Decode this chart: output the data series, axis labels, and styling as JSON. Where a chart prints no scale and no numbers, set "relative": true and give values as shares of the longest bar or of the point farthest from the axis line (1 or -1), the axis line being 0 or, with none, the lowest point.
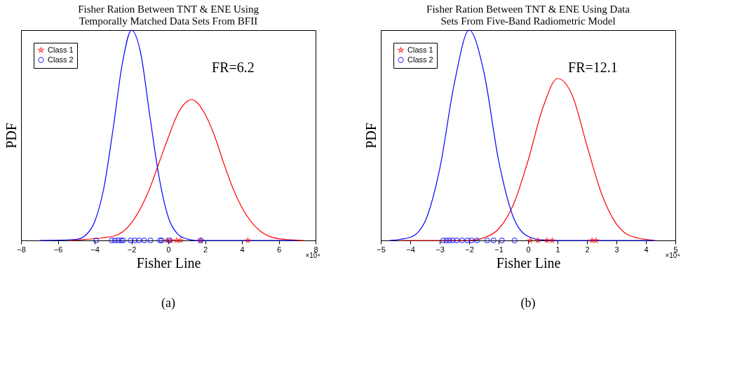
{
  "chart_data": [
    {
      "type": "line",
      "relative": true,
      "title": "Fisher Ration Between TNT & ENE Using\nTemporally Matched Data Sets From BFII",
      "xlabel": "Fisher Line",
      "ylabel": "PDF",
      "xlim": [
        -8,
        8
      ],
      "xticks": [
        -8,
        -6,
        -4,
        -2,
        0,
        2,
        4,
        6,
        8
      ],
      "grid": false,
      "legend": "top left",
      "annotations": [
        "FR=6.2",
        "×10⁴",
        "(a)"
      ],
      "series": [
        {
          "color": "#ff0000",
          "x": [
            -5.4,
            -3,
            -2,
            -1,
            -0.5,
            0,
            0.5,
            1,
            1.26,
            1.5,
            2,
            2.5,
            3,
            3.5,
            4,
            5,
            6,
            7.4
          ],
          "values": [
            0,
            0.02,
            0.084,
            0.25,
            0.37,
            0.49,
            0.6,
            0.66,
            0.67,
            0.66,
            0.6,
            0.5,
            0.37,
            0.25,
            0.156,
            0.044,
            0.008,
            0
          ]
        },
        {
          "color": "#0000ff",
          "x": [
            -7,
            -5,
            -4.5,
            -4,
            -3.5,
            -3,
            -2.5,
            -2,
            -1.5,
            -1,
            -0.5,
            0,
            0.5,
            1,
            1.5,
            7
          ],
          "values": [
            0,
            0.005,
            0.024,
            0.089,
            0.25,
            0.53,
            0.84,
            1.0,
            0.89,
            0.59,
            0.3,
            0.11,
            0.031,
            0.007,
            0,
            0
          ]
        },
        {
          "type": "scatter",
          "name": "Class 1",
          "color": "#ff0000",
          "marker": "star",
          "x": [
            -0.07,
            0.14,
            0.45,
            0.66,
            1.76,
            4.32
          ],
          "values": [
            0,
            0,
            0,
            0,
            0,
            0
          ]
        },
        {
          "type": "scatter",
          "name": "Class 2",
          "color": "#0000ff",
          "marker": "circle",
          "x": [
            -3.92,
            -3.07,
            -2.9,
            -2.73,
            -2.56,
            -2.45,
            -2.05,
            -1.82,
            -1.59,
            -1.31,
            -0.97,
            -0.45,
            -0.36,
            0.06,
            1.76
          ],
          "values": [
            0,
            0,
            0,
            0,
            0,
            0,
            0,
            0,
            0,
            0,
            0,
            0,
            0,
            0,
            0
          ]
        }
      ]
    },
    {
      "type": "line",
      "relative": true,
      "title": "Fisher Ration Between TNT & ENE Using Data\nSets From Five-Band Radiometric Model",
      "xlabel": "Fisher Line",
      "ylabel": "PDF",
      "xlim": [
        -5,
        5
      ],
      "xticks": [
        -5,
        -4,
        -3,
        -2,
        -1,
        0,
        1,
        2,
        3,
        4,
        5
      ],
      "grid": false,
      "legend": "top left",
      "annotations": [
        "FR=12.1",
        "×10⁴",
        "(b)"
      ],
      "series": [
        {
          "color": "#ff0000",
          "x": [
            -4.3,
            -2,
            -1.5,
            -1,
            -0.5,
            0,
            0.5,
            1,
            1.5,
            2,
            2.5,
            3,
            3.5,
            4.3
          ],
          "values": [
            0,
            0,
            0.013,
            0.055,
            0.17,
            0.38,
            0.63,
            0.77,
            0.69,
            0.45,
            0.22,
            0.078,
            0.02,
            0
          ]
        },
        {
          "color": "#0000ff",
          "x": [
            -4.7,
            -4,
            -3.5,
            -3,
            -2.5,
            -2,
            -1.5,
            -1,
            -0.5,
            0,
            0.5,
            1,
            4.3
          ],
          "values": [
            0,
            0.015,
            0.09,
            0.34,
            0.75,
            1.0,
            0.8,
            0.38,
            0.11,
            0.019,
            0.002,
            0,
            0
          ]
        },
        {
          "type": "scatter",
          "name": "Class 1",
          "color": "#ff0000",
          "marker": "star",
          "x": [
            0.07,
            0.33,
            0.64,
            0.82,
            2.17,
            2.31
          ],
          "values": [
            0,
            0,
            0,
            0,
            0,
            0
          ]
        },
        {
          "type": "scatter",
          "name": "Class 2",
          "color": "#0000ff",
          "marker": "circle",
          "x": [
            -2.88,
            -2.77,
            -2.67,
            -2.56,
            -2.42,
            -2.24,
            -2.06,
            -1.92,
            -1.74,
            -1.39,
            -1.17,
            -0.89,
            -0.46
          ],
          "values": [
            0,
            0,
            0,
            0,
            0,
            0,
            0,
            0,
            0,
            0,
            0,
            0,
            0
          ]
        }
      ]
    }
  ]
}
